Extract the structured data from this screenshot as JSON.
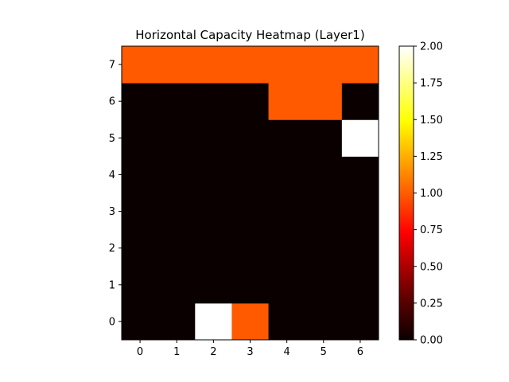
{
  "chart_data": {
    "type": "heatmap",
    "title": "Horizontal Capacity Heatmap (Layer1)",
    "xlabel": "",
    "ylabel": "",
    "x": [
      0,
      1,
      2,
      3,
      4,
      5,
      6
    ],
    "y": [
      0,
      1,
      2,
      3,
      4,
      5,
      6,
      7
    ],
    "x_tick_labels": [
      "0",
      "1",
      "2",
      "3",
      "4",
      "5",
      "6"
    ],
    "y_tick_labels": [
      "0",
      "1",
      "2",
      "3",
      "4",
      "5",
      "6",
      "7"
    ],
    "values": [
      [
        0,
        0,
        2,
        1,
        0,
        0,
        0
      ],
      [
        0,
        0,
        0,
        0,
        0,
        0,
        0
      ],
      [
        0,
        0,
        0,
        0,
        0,
        0,
        0
      ],
      [
        0,
        0,
        0,
        0,
        0,
        0,
        0
      ],
      [
        0,
        0,
        0,
        0,
        0,
        0,
        0
      ],
      [
        0,
        0,
        0,
        0,
        0,
        0,
        2
      ],
      [
        0,
        0,
        0,
        0,
        1,
        1,
        0
      ],
      [
        1,
        1,
        1,
        1,
        1,
        1,
        1
      ]
    ],
    "colormap": "hot",
    "vmin": 0,
    "vmax": 2,
    "colorbar": {
      "ticks": [
        0.0,
        0.25,
        0.5,
        0.75,
        1.0,
        1.25,
        1.5,
        1.75,
        2.0
      ],
      "tick_labels": [
        "0.00",
        "0.25",
        "0.50",
        "0.75",
        "1.00",
        "1.25",
        "1.50",
        "1.75",
        "2.00"
      ]
    },
    "grid": false
  }
}
